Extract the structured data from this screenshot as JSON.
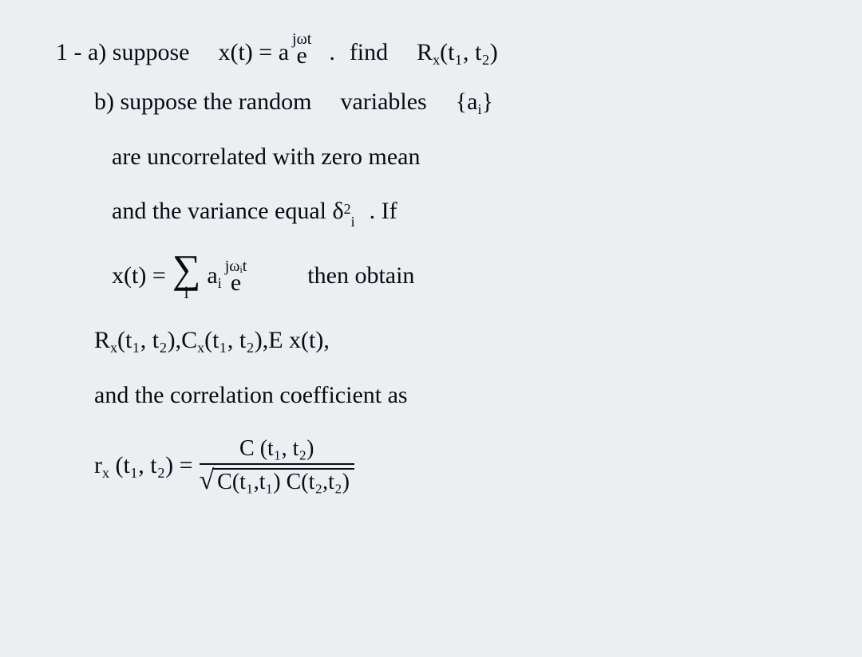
{
  "background_color": "#eceff2",
  "text_color": "#0a0a12",
  "font_family": "Comic Sans MS",
  "base_font_size": 30,
  "line1": {
    "label": "1 - a) suppose",
    "lhs_pre": "x(t) = a",
    "exp_sup": "jωt",
    "exp_base": "e",
    "dot": ".",
    "after": "find",
    "R": "R",
    "R_sub": "x",
    "R_args": "(t₁, t₂)"
  },
  "line2": {
    "label": "b) suppose the random",
    "after": "variables",
    "set_open": "{a",
    "set_sub": "i",
    "set_close": "}"
  },
  "line3": "are   uncorrelated   with   zero   mean",
  "line4_a": "and   the   variance   equal   δ",
  "line4_sup": "2",
  "line4_sub": "i",
  "line4_b": ".   If",
  "line5": {
    "lhs": "x(t) =",
    "sigma_lim": "i",
    "ai": "a",
    "ai_sub": "i",
    "exp_sup": "jωᵢt",
    "exp_base": "e",
    "after": "then   obtain"
  },
  "line6": {
    "R": "R",
    "R_sub": "x",
    "R_args": "(t₁, t₂)",
    "sep1": " ,   ",
    "C": "C",
    "C_sub": "x",
    "C_args": "(t₁, t₂)",
    "sep2": " ,   ",
    "E": "E x(t)",
    "sep3": " ,"
  },
  "line7": "and   the   correlation     coefficient   as",
  "line8": {
    "lhs_r": "r",
    "lhs_sub": "x",
    "lhs_args": "(t₁, t₂) =",
    "num": "C (t₁, t₂)",
    "den_inside": "C(t₁,t₁) C(t₂,t₂)"
  }
}
